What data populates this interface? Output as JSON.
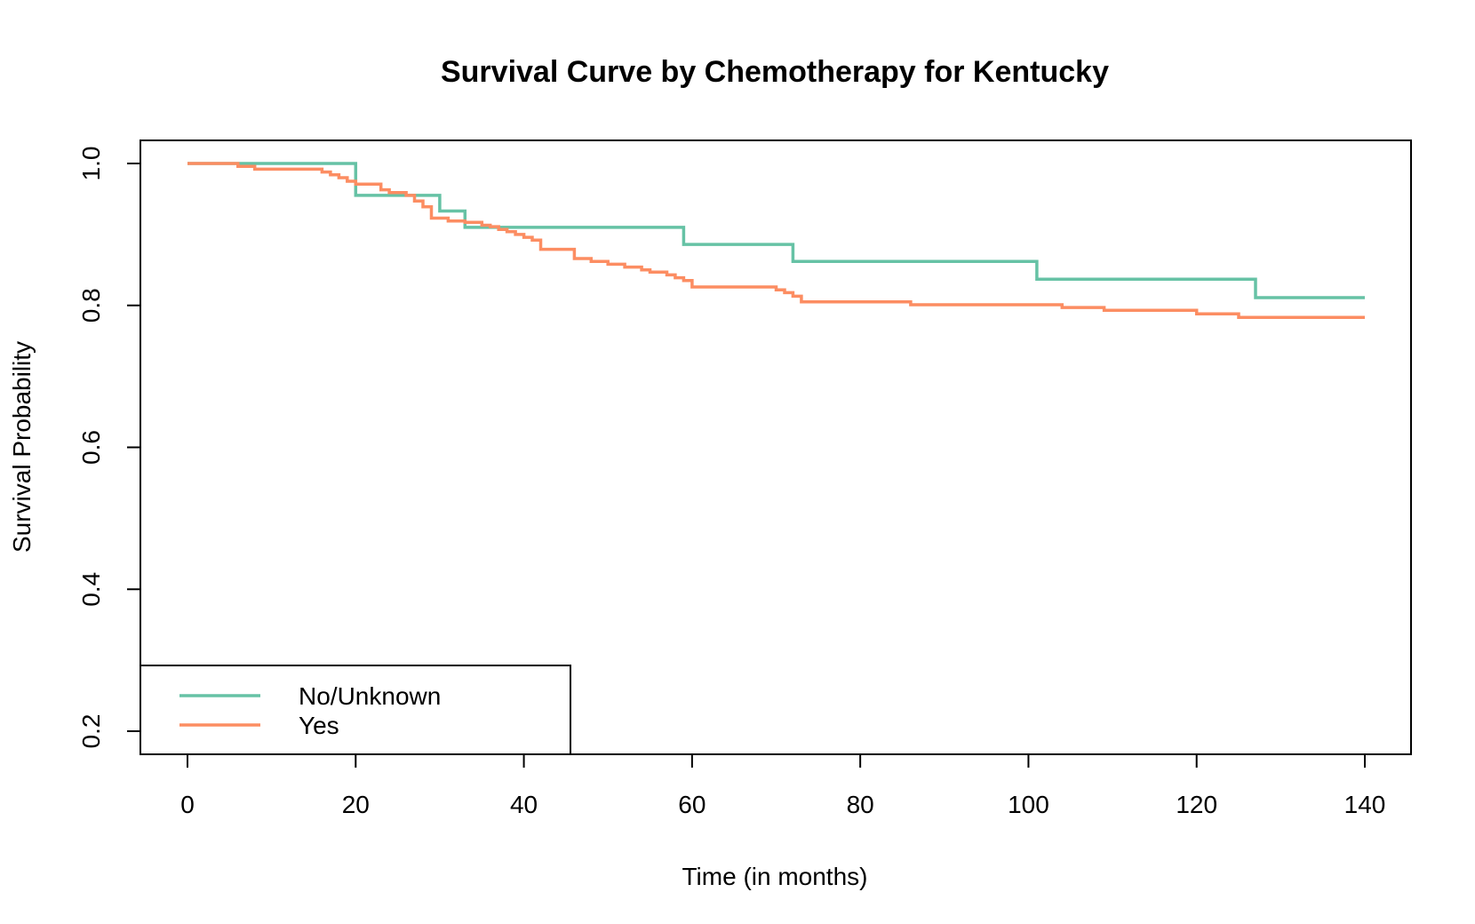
{
  "chart_data": {
    "type": "line",
    "step": true,
    "title": "Survival Curve by Chemotherapy for Kentucky",
    "xlabel": "Time (in months)",
    "ylabel": "Survival Probability",
    "xlim": [
      0,
      140
    ],
    "ylim": [
      0.2,
      1.0
    ],
    "xticks": [
      0,
      20,
      40,
      60,
      80,
      100,
      120,
      140
    ],
    "xtick_labels": [
      "0",
      "20",
      "40",
      "60",
      "80",
      "100",
      "120",
      "140"
    ],
    "yticks": [
      0.2,
      0.4,
      0.6,
      0.8,
      1.0
    ],
    "ytick_labels": [
      "0.2",
      "0.4",
      "0.6",
      "0.8",
      "1.0"
    ],
    "grid": false,
    "legend": {
      "position": "bottom-left"
    },
    "series": [
      {
        "name": "No/Unknown",
        "color": "#66c2a5",
        "x": [
          0,
          20,
          30,
          33,
          59,
          72,
          101,
          127,
          140
        ],
        "y": [
          1.0,
          0.955,
          0.933,
          0.91,
          0.886,
          0.862,
          0.837,
          0.811,
          0.811
        ]
      },
      {
        "name": "Yes",
        "color": "#fc8d62",
        "x": [
          0,
          6,
          8,
          16,
          17,
          18,
          19,
          20,
          23,
          24,
          26,
          27,
          28,
          29,
          31,
          33,
          35,
          36,
          37,
          38,
          39,
          40,
          41,
          42,
          46,
          48,
          50,
          52,
          54,
          55,
          57,
          58,
          59,
          60,
          70,
          71,
          72,
          73,
          86,
          104,
          109,
          120,
          125,
          140
        ],
        "y": [
          1.0,
          0.996,
          0.992,
          0.988,
          0.984,
          0.98,
          0.975,
          0.971,
          0.963,
          0.959,
          0.955,
          0.947,
          0.939,
          0.923,
          0.919,
          0.917,
          0.913,
          0.911,
          0.907,
          0.904,
          0.9,
          0.896,
          0.892,
          0.879,
          0.866,
          0.862,
          0.858,
          0.854,
          0.85,
          0.847,
          0.843,
          0.839,
          0.835,
          0.826,
          0.822,
          0.818,
          0.813,
          0.805,
          0.801,
          0.797,
          0.793,
          0.788,
          0.783,
          0.783
        ]
      }
    ]
  }
}
